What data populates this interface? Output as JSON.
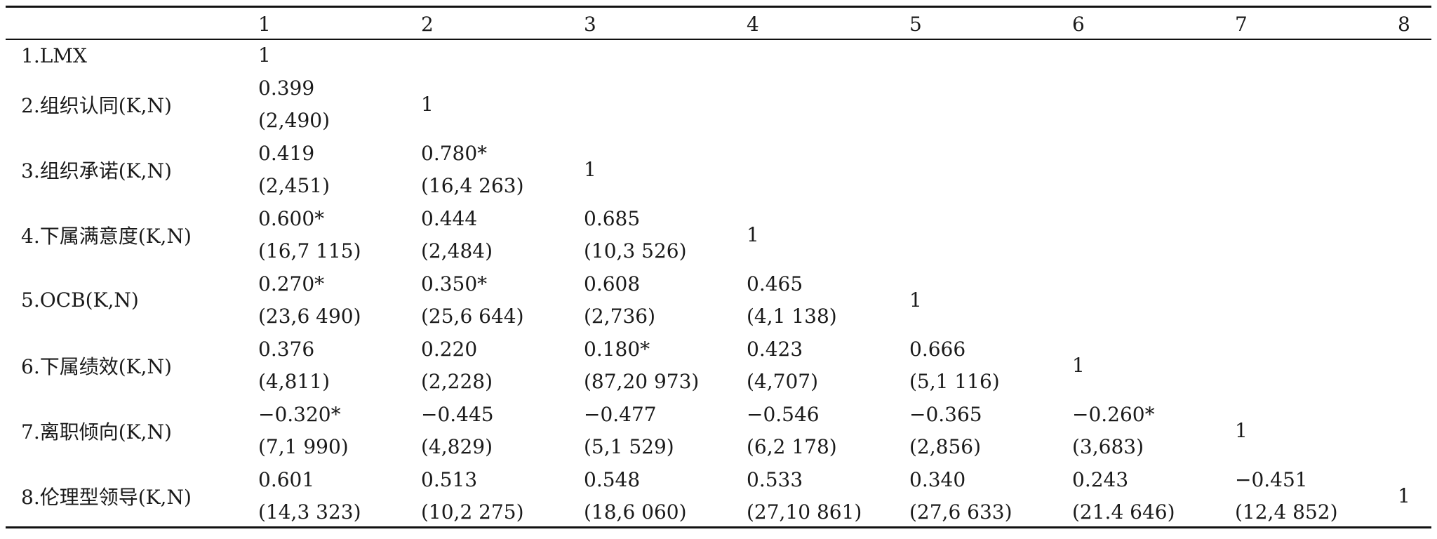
{
  "table": {
    "headers": [
      "",
      "1",
      "2",
      "3",
      "4",
      "5",
      "6",
      "7",
      "8"
    ],
    "rows": [
      {
        "label": "1.LMX",
        "cells": [
          {
            "r": "1",
            "kn": ""
          }
        ]
      },
      {
        "label": "2.组织认同(K,N)",
        "cells": [
          {
            "r": "0.399",
            "kn": "(2,490)"
          },
          {
            "r": "1",
            "kn": ""
          }
        ]
      },
      {
        "label": "3.组织承诺(K,N)",
        "cells": [
          {
            "r": "0.419",
            "kn": "(2,451)"
          },
          {
            "r": "0.780*",
            "kn": "(16,4 263)"
          },
          {
            "r": "1",
            "kn": ""
          }
        ]
      },
      {
        "label": "4.下属满意度(K,N)",
        "cells": [
          {
            "r": "0.600*",
            "kn": "(16,7 115)"
          },
          {
            "r": "0.444",
            "kn": "(2,484)"
          },
          {
            "r": "0.685",
            "kn": "(10,3 526)"
          },
          {
            "r": "1",
            "kn": ""
          }
        ]
      },
      {
        "label": "5.OCB(K,N)",
        "cells": [
          {
            "r": "0.270*",
            "kn": "(23,6 490)"
          },
          {
            "r": "0.350*",
            "kn": "(25,6 644)"
          },
          {
            "r": "0.608",
            "kn": "(2,736)"
          },
          {
            "r": "0.465",
            "kn": "(4,1 138)"
          },
          {
            "r": "1",
            "kn": ""
          }
        ]
      },
      {
        "label": "6.下属绩效(K,N)",
        "cells": [
          {
            "r": "0.376",
            "kn": "(4,811)"
          },
          {
            "r": "0.220",
            "kn": "(2,228)"
          },
          {
            "r": "0.180*",
            "kn": "(87,20 973)"
          },
          {
            "r": "0.423",
            "kn": "(4,707)"
          },
          {
            "r": "0.666",
            "kn": "(5,1 116)"
          },
          {
            "r": "1",
            "kn": ""
          }
        ]
      },
      {
        "label": "7.离职倾向(K,N)",
        "cells": [
          {
            "r": "−0.320*",
            "kn": "(7,1 990)"
          },
          {
            "r": "−0.445",
            "kn": "(4,829)"
          },
          {
            "r": "−0.477",
            "kn": "(5,1 529)"
          },
          {
            "r": "−0.546",
            "kn": "(6,2 178)"
          },
          {
            "r": "−0.365",
            "kn": "(2,856)"
          },
          {
            "r": "−0.260*",
            "kn": "(3,683)"
          },
          {
            "r": "1",
            "kn": ""
          }
        ]
      },
      {
        "label": "8.伦理型领导(K,N)",
        "cells": [
          {
            "r": "0.601",
            "kn": "(14,3 323)"
          },
          {
            "r": "0.513",
            "kn": "(10,2 275)"
          },
          {
            "r": "0.548",
            "kn": "(18,6 060)"
          },
          {
            "r": "0.533",
            "kn": "(27,10 861)"
          },
          {
            "r": "0.340",
            "kn": "(27,6 633)"
          },
          {
            "r": "0.243",
            "kn": "(21.4 646)"
          },
          {
            "r": "−0.451",
            "kn": "(12,4 852)"
          },
          {
            "r": "1",
            "kn": ""
          }
        ]
      }
    ]
  }
}
